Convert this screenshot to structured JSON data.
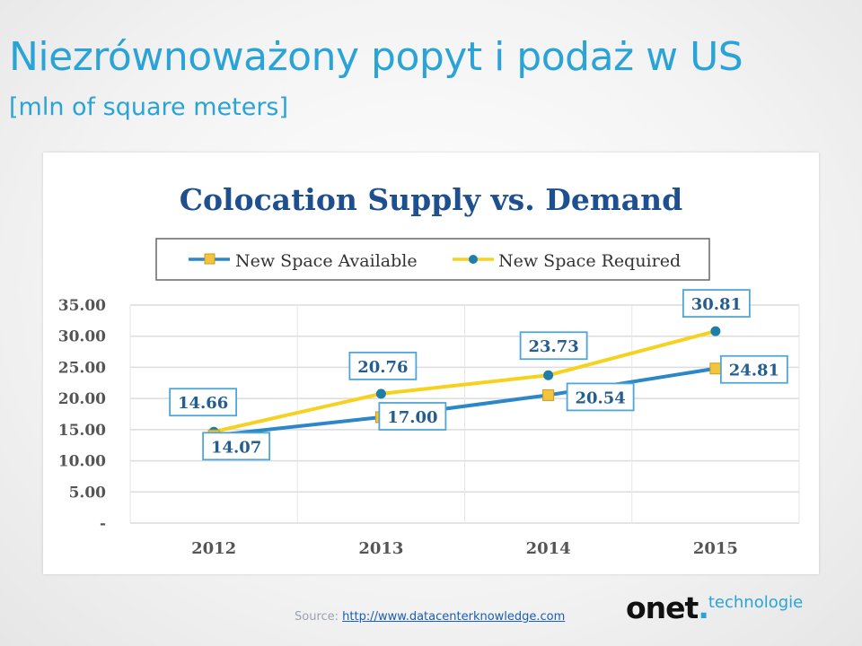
{
  "slide": {
    "title": "Niezrównoważony popyt i podaż w US",
    "subtitle": "[mln of square meters]"
  },
  "chart_data": {
    "type": "line",
    "title": "Colocation Supply vs. Demand",
    "categories": [
      "2012",
      "2013",
      "2014",
      "2015"
    ],
    "series": [
      {
        "name": "New Space Available",
        "values": [
          14.07,
          17.0,
          20.54,
          24.81
        ],
        "color": "#2c87c8",
        "marker": "square",
        "marker_color": "#f2c53d"
      },
      {
        "name": "New Space Required",
        "values": [
          14.66,
          20.76,
          23.73,
          30.81
        ],
        "color": "#f6d21f",
        "marker": "circle",
        "marker_color": "#1f7ea8"
      }
    ],
    "data_labels": {
      "New Space Available": [
        "14.07",
        "17.00",
        "20.54",
        "24.81"
      ],
      "New Space Required": [
        "14.66",
        "20.76",
        "23.73",
        "30.81"
      ]
    },
    "y_ticks": [
      "-",
      "5.00",
      "10.00",
      "15.00",
      "20.00",
      "25.00",
      "30.00",
      "35.00"
    ],
    "ylim": [
      0,
      35
    ],
    "grid": true,
    "legend_position": "top",
    "xlabel": "",
    "ylabel": ""
  },
  "source": {
    "prefix": "Source:",
    "url": "http://www.datacenterknowledge.com"
  },
  "logo": {
    "main": "onet",
    "dot": ".",
    "sub": "technologie"
  }
}
